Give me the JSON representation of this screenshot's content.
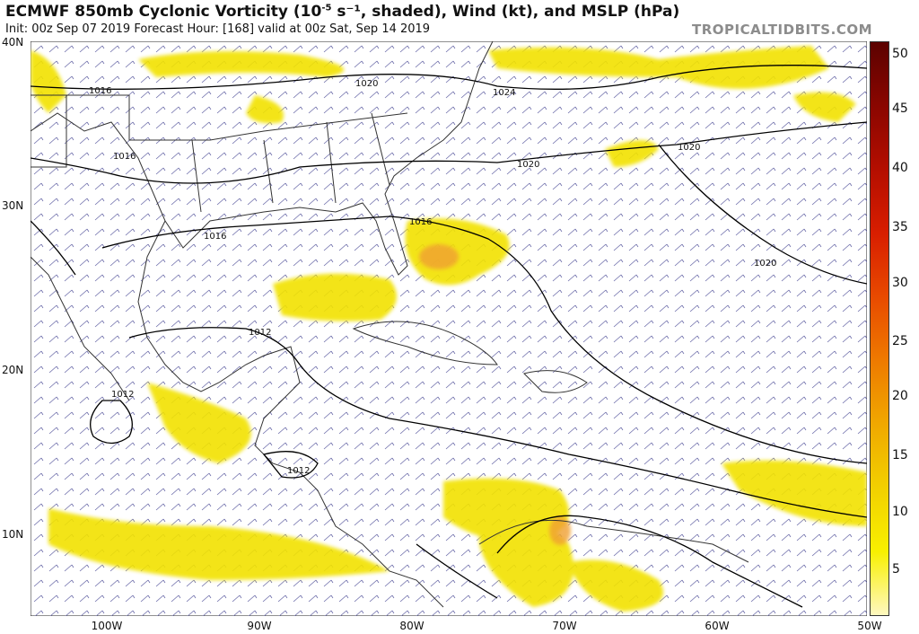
{
  "header": {
    "title_pre": "ECMWF 850mb Cyclonic Vorticity (10",
    "title_exp": "-5",
    "title_post": " s⁻¹, shaded), Wind (kt), and MSLP (hPa)",
    "subtitle": "Init: 00z Sep 07 2019   Forecast Hour: [168]   valid at 00z Sat, Sep 14 2019",
    "brand": "TROPICALTIDBITS.COM"
  },
  "axes": {
    "lat_labels": [
      "40N",
      "30N",
      "20N",
      "10N"
    ],
    "lon_labels": [
      "100W",
      "90W",
      "80W",
      "70W",
      "60W",
      "50W"
    ]
  },
  "isobars": {
    "labels": [
      "1016",
      "1016",
      "1016",
      "1020",
      "1024",
      "1020",
      "1020",
      "1016",
      "1020",
      "1012",
      "1012",
      "1012"
    ]
  },
  "colorbar": {
    "labels": [
      "50",
      "45",
      "40",
      "35",
      "30",
      "25",
      "20",
      "15",
      "10",
      "5"
    ],
    "colors": [
      "#fff8c0",
      "#f8f000",
      "#f2d000",
      "#f0a800",
      "#ee7a00",
      "#e84a00",
      "#d81e00",
      "#b40e00",
      "#8a0600",
      "#5c0200"
    ]
  },
  "colors": {
    "land_border": "#333333",
    "vorticity_low": "#f0e000",
    "vorticity_mid": "#f0b020",
    "wind_barb": "#5a5a9a",
    "isobar": "#000000"
  }
}
